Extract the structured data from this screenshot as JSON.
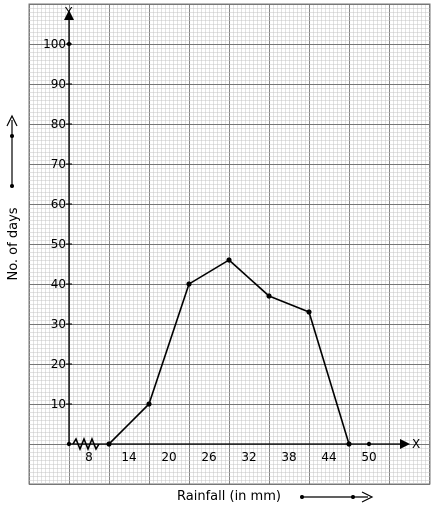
{
  "chart_data": {
    "type": "line",
    "title": "",
    "xlabel": "Rainfall (in mm)",
    "ylabel": "No. of days",
    "x_axis_letter": "X",
    "y_axis_letter": "Y",
    "x": [
      11,
      17,
      23,
      29,
      35,
      41,
      47
    ],
    "y": [
      0,
      10,
      40,
      46,
      37,
      33,
      0
    ],
    "x_ticks": [
      {
        "x": 8,
        "label": "8"
      },
      {
        "x": 14,
        "label": "14"
      },
      {
        "x": 20,
        "label": "20"
      },
      {
        "x": 26,
        "label": "26"
      },
      {
        "x": 32,
        "label": "32"
      },
      {
        "x": 38,
        "label": "38"
      },
      {
        "x": 44,
        "label": "44"
      },
      {
        "x": 50,
        "label": "50"
      }
    ],
    "y_ticks": [
      {
        "y": 10,
        "label": "10"
      },
      {
        "y": 20,
        "label": "20"
      },
      {
        "y": 30,
        "label": "30"
      },
      {
        "y": 40,
        "label": "40"
      },
      {
        "y": 50,
        "label": "50"
      },
      {
        "y": 60,
        "label": "60"
      },
      {
        "y": 70,
        "label": "70"
      },
      {
        "y": 80,
        "label": "80"
      },
      {
        "y": 90,
        "label": "90"
      },
      {
        "y": 100,
        "label": "100"
      }
    ],
    "axis_break": true,
    "grid": true,
    "colors": {
      "line": "#000000",
      "grid_major": "#777777",
      "grid_minor": "#c4c4c4"
    }
  }
}
